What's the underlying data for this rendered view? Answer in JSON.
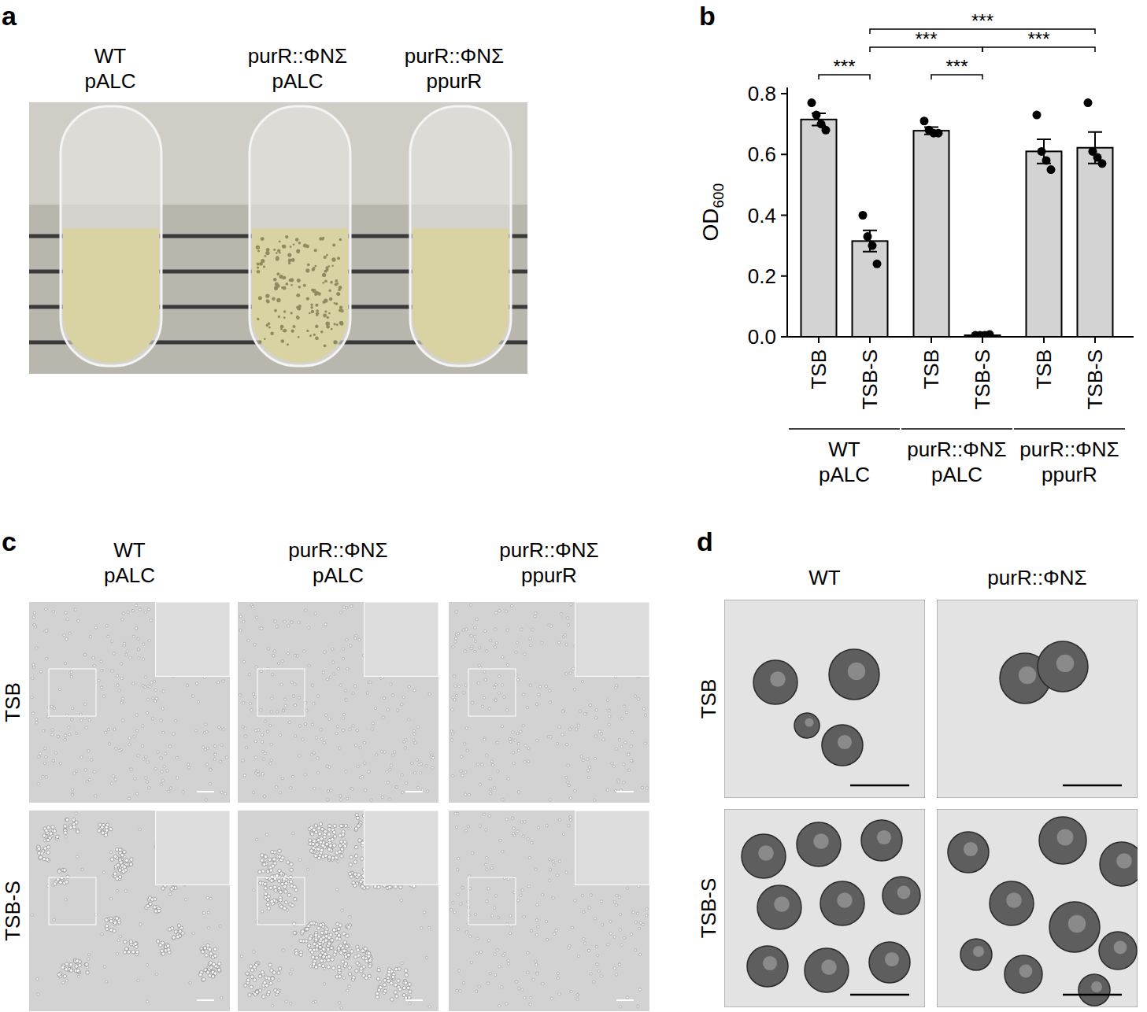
{
  "figure": {
    "panel_a": {
      "letter": "a",
      "columns": [
        [
          "WT",
          "pALC"
        ],
        [
          "purR::ΦNΣ",
          "pALC"
        ],
        [
          "purR::ΦNΣ",
          "ppurR"
        ]
      ]
    },
    "panel_b": {
      "letter": "b"
    },
    "panel_c": {
      "letter": "c",
      "columns": [
        [
          "WT",
          "pALC"
        ],
        [
          "purR::ΦNΣ",
          "pALC"
        ],
        [
          "purR::ΦNΣ",
          "ppurR"
        ]
      ],
      "rows": [
        "TSB",
        "TSB-S"
      ]
    },
    "panel_d": {
      "letter": "d",
      "columns": [
        [
          "WT"
        ],
        [
          "purR::ΦNΣ"
        ]
      ],
      "rows": [
        "TSB",
        "TSB-S"
      ]
    }
  },
  "chart_data": {
    "type": "bar",
    "y_label": "OD",
    "y_label_subscript": "600",
    "categories": [
      "TSB",
      "TSB-S",
      "TSB",
      "TSB-S",
      "TSB",
      "TSB-S"
    ],
    "groups": [
      {
        "label": [
          "WT",
          "pALC"
        ],
        "indices": [
          0,
          1
        ]
      },
      {
        "label": [
          "purR::ΦNΣ",
          "pALC"
        ],
        "indices": [
          2,
          3
        ]
      },
      {
        "label": [
          "purR::ΦNΣ",
          "ppurR"
        ],
        "indices": [
          4,
          5
        ]
      }
    ],
    "values": [
      0.715,
      0.315,
      0.678,
      0.005,
      0.61,
      0.622
    ],
    "errors": [
      0.02,
      0.035,
      0.012,
      0.002,
      0.04,
      0.052
    ],
    "points": [
      [
        0.77,
        0.73,
        0.7,
        0.68
      ],
      [
        0.4,
        0.33,
        0.3,
        0.24
      ],
      [
        0.71,
        0.68,
        0.67,
        0.67
      ],
      [
        0.005,
        0.005,
        0.005,
        0.008
      ],
      [
        0.73,
        0.61,
        0.58,
        0.55
      ],
      [
        0.77,
        0.61,
        0.59,
        0.57
      ]
    ],
    "color": "#d3d3d3",
    "ylim": [
      0,
      0.82
    ],
    "yticks": [
      {
        "value": 0,
        "label": "0.0"
      },
      0.2,
      0.4,
      0.6,
      0.8
    ],
    "annotations": [
      {
        "text": "***",
        "from": 0,
        "to": 1
      },
      {
        "text": "***",
        "from": 2,
        "to": 3
      },
      {
        "text": "***",
        "from": 1,
        "to": 3
      },
      {
        "text": "***",
        "from": 3,
        "to": 5
      },
      {
        "text": "***",
        "from": 1,
        "to": 5
      }
    ]
  }
}
